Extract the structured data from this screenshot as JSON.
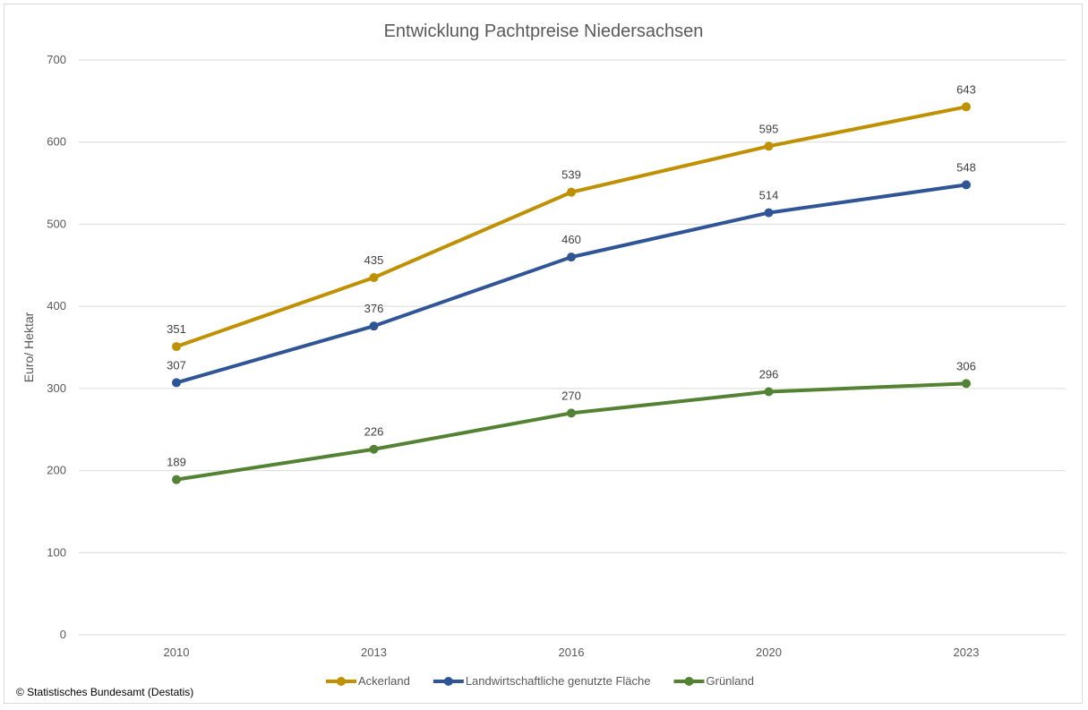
{
  "chart_data": {
    "type": "line",
    "title": "Entwicklung Pachtpreise Niedersachsen",
    "xlabel": "",
    "ylabel": "Euro/ Hektar",
    "categories": [
      "2010",
      "2013",
      "2016",
      "2020",
      "2023"
    ],
    "ylim": [
      0,
      700
    ],
    "yticks": [
      0,
      100,
      200,
      300,
      400,
      500,
      600,
      700
    ],
    "grid": true,
    "legend_position": "bottom",
    "series": [
      {
        "name": "Ackerland",
        "color": "#bf9000",
        "values": [
          351,
          435,
          539,
          595,
          643
        ]
      },
      {
        "name": "Landwirtschaftliche genutzte Fläche",
        "color": "#2f5597",
        "values": [
          307,
          376,
          460,
          514,
          548
        ]
      },
      {
        "name": "Grünland",
        "color": "#548235",
        "values": [
          189,
          226,
          270,
          296,
          306
        ]
      }
    ]
  },
  "source": "© Statistisches Bundesamt (Destatis)"
}
